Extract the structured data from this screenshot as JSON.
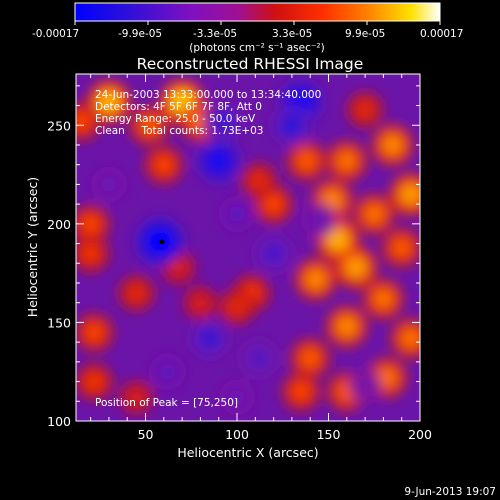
{
  "colorbar": {
    "tick_labels": [
      "-0.00017",
      "-9.9e-05",
      "-3.3e-05",
      "3.3e-05",
      "9.9e-05",
      "0.00017"
    ],
    "unit_label": "(photons cm⁻² s⁻¹ asec⁻²)"
  },
  "image_info": {
    "time_range": "24-Jun-2003 13:33:00.000 to 13:34:40.000",
    "detectors": "Detectors: 4F 5F 6F 7F 8F, Att 0",
    "energy_range": "Energy Range: 25.0 - 50.0 keV",
    "method": "Clean     Total counts: 1.73E+03",
    "peak_position": "Position of Peak = [75,250]"
  },
  "footer": {
    "date_stamp": "9-Jun-2013 19:07"
  },
  "chart_data": {
    "type": "heatmap",
    "title": "Reconstructed RHESSI Image",
    "xlabel": "Heliocentric X (arcsec)",
    "ylabel": "Heliocentric Y (arcsec)",
    "xlim": [
      12,
      200
    ],
    "ylim": [
      100,
      276
    ],
    "xticks": [
      50,
      100,
      150,
      200
    ],
    "yticks": [
      100,
      150,
      200,
      250
    ],
    "colorbar_range": [
      -0.00017,
      0.00017
    ],
    "colormap": [
      "#0000ff",
      "#5010c0",
      "#9010b0",
      "#c01010",
      "#ff4000",
      "#ff9000",
      "#ffd000",
      "#ffffff"
    ],
    "marker": {
      "x": 59,
      "y": 191
    },
    "blobs": [
      {
        "x": 30,
        "y": 262,
        "v": 0.00013
      },
      {
        "x": 70,
        "y": 262,
        "v": 0.00014
      },
      {
        "x": 52,
        "y": 250,
        "v": 9e-05
      },
      {
        "x": 80,
        "y": 252,
        "v": 0.0001
      },
      {
        "x": 15,
        "y": 252,
        "v": 8e-05
      },
      {
        "x": 60,
        "y": 230,
        "v": 8e-05
      },
      {
        "x": 170,
        "y": 258,
        "v": 6e-05
      },
      {
        "x": 185,
        "y": 240,
        "v": 0.00011
      },
      {
        "x": 160,
        "y": 232,
        "v": 0.0001
      },
      {
        "x": 138,
        "y": 232,
        "v": 9e-05
      },
      {
        "x": 195,
        "y": 215,
        "v": 0.00012
      },
      {
        "x": 152,
        "y": 212,
        "v": 0.00011
      },
      {
        "x": 175,
        "y": 205,
        "v": 0.0001
      },
      {
        "x": 190,
        "y": 188,
        "v": 9e-05
      },
      {
        "x": 155,
        "y": 192,
        "v": 0.00013
      },
      {
        "x": 165,
        "y": 178,
        "v": 0.00012
      },
      {
        "x": 143,
        "y": 172,
        "v": 0.00011
      },
      {
        "x": 180,
        "y": 162,
        "v": 0.0001
      },
      {
        "x": 160,
        "y": 148,
        "v": 0.00011
      },
      {
        "x": 195,
        "y": 142,
        "v": 0.0001
      },
      {
        "x": 140,
        "y": 132,
        "v": 9e-05
      },
      {
        "x": 182,
        "y": 122,
        "v": 0.0001
      },
      {
        "x": 160,
        "y": 115,
        "v": 9e-05
      },
      {
        "x": 135,
        "y": 115,
        "v": 8e-05
      },
      {
        "x": 120,
        "y": 210,
        "v": 8e-05
      },
      {
        "x": 112,
        "y": 222,
        "v": 6e-05
      },
      {
        "x": 20,
        "y": 200,
        "v": 8e-05
      },
      {
        "x": 20,
        "y": 185,
        "v": 7e-05
      },
      {
        "x": 68,
        "y": 178,
        "v": 5e-05
      },
      {
        "x": 45,
        "y": 165,
        "v": 6e-05
      },
      {
        "x": 80,
        "y": 160,
        "v": 5e-05
      },
      {
        "x": 108,
        "y": 165,
        "v": 7e-05
      },
      {
        "x": 22,
        "y": 145,
        "v": 8e-05
      },
      {
        "x": 22,
        "y": 120,
        "v": 7e-05
      },
      {
        "x": 45,
        "y": 112,
        "v": 5e-05
      },
      {
        "x": 100,
        "y": 158,
        "v": 6e-05
      },
      {
        "x": 58,
        "y": 191,
        "v": -0.00017
      },
      {
        "x": 92,
        "y": 252,
        "v": -9e-05
      },
      {
        "x": 90,
        "y": 232,
        "v": -0.00014
      },
      {
        "x": 135,
        "y": 262,
        "v": -0.00014
      },
      {
        "x": 130,
        "y": 250,
        "v": -0.0001
      },
      {
        "x": 120,
        "y": 185,
        "v": -8e-05
      },
      {
        "x": 100,
        "y": 205,
        "v": -6e-05
      },
      {
        "x": 85,
        "y": 142,
        "v": -9e-05
      },
      {
        "x": 112,
        "y": 132,
        "v": -7e-05
      },
      {
        "x": 62,
        "y": 125,
        "v": -6e-05
      },
      {
        "x": 30,
        "y": 220,
        "v": -5e-05
      },
      {
        "x": 145,
        "y": 202,
        "v": -5e-05
      },
      {
        "x": 170,
        "y": 118,
        "v": -4e-05
      },
      {
        "x": 100,
        "y": 112,
        "v": -5e-05
      }
    ]
  }
}
